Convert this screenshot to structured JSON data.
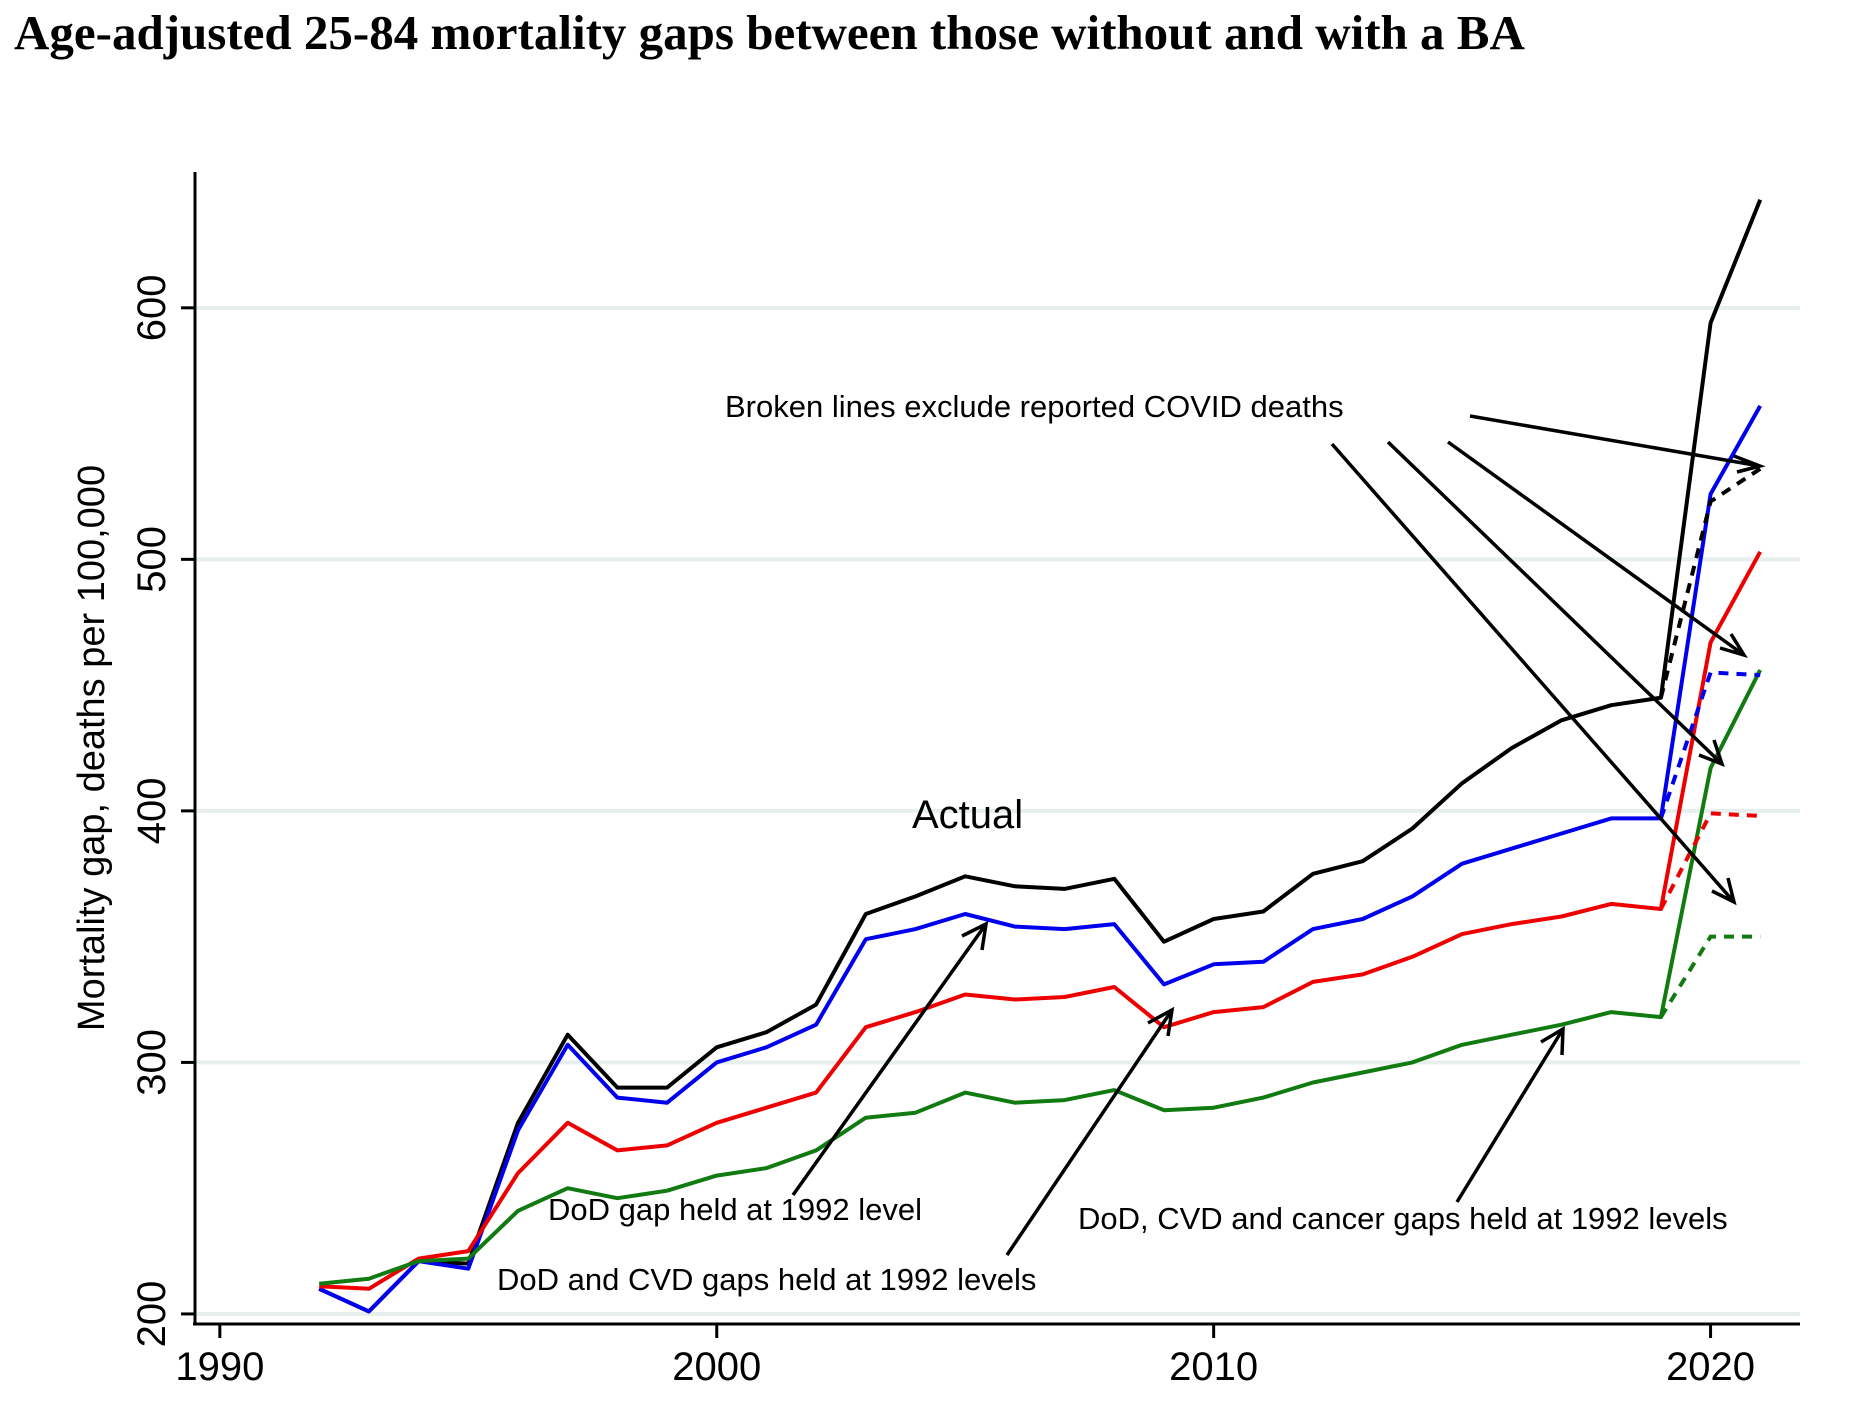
{
  "chart_data": {
    "type": "line",
    "title": "Age-adjusted 25-84 mortality gaps between those without and with a BA",
    "ylabel": "Mortality gap, deaths per 100,000",
    "xlabel": "",
    "xlim": [
      1989.5,
      2021.8
    ],
    "ylim": [
      196,
      654
    ],
    "x_ticks": [
      1990,
      2000,
      2010,
      2020
    ],
    "y_ticks": [
      200,
      300,
      400,
      500,
      600
    ],
    "grid": true,
    "legend": "none",
    "colors": {
      "black": "#000000",
      "blue": "#0000ee",
      "red": "#ee0000",
      "green": "#117a11",
      "grid": "#e6eeee"
    },
    "x": [
      1992,
      1993,
      1994,
      1995,
      1996,
      1997,
      1998,
      1999,
      2000,
      2001,
      2002,
      2003,
      2004,
      2005,
      2006,
      2007,
      2008,
      2009,
      2010,
      2011,
      2012,
      2013,
      2014,
      2015,
      2016,
      2017,
      2018,
      2019,
      2020,
      2021
    ],
    "series": [
      {
        "name": "Actual",
        "color": "#000000",
        "values": [
          210,
          201,
          221,
          220,
          276,
          311,
          290,
          290,
          306,
          312,
          323,
          359,
          366,
          374,
          370,
          369,
          373,
          348,
          357,
          360,
          375,
          380,
          393,
          411,
          425,
          436,
          442,
          445,
          594,
          643
        ]
      },
      {
        "name": "DoD gap held at 1992 level",
        "color": "#0000ee",
        "values": [
          210,
          201,
          221,
          218,
          273,
          307,
          286,
          284,
          300,
          306,
          315,
          349,
          353,
          359,
          354,
          353,
          355,
          331,
          339,
          340,
          353,
          357,
          366,
          379,
          385,
          391,
          397,
          397,
          526,
          561
        ]
      },
      {
        "name": "DoD and CVD gaps held at 1992 levels",
        "color": "#ee0000",
        "values": [
          211,
          210,
          222,
          225,
          256,
          276,
          265,
          267,
          276,
          282,
          288,
          314,
          320,
          327,
          325,
          326,
          330,
          314,
          320,
          322,
          332,
          335,
          342,
          351,
          355,
          358,
          363,
          361,
          467,
          503
        ]
      },
      {
        "name": "DoD, CVD and cancer gaps held at 1992 levels",
        "color": "#117a11",
        "values": [
          212,
          214,
          221,
          222,
          241,
          250,
          246,
          249,
          255,
          258,
          265,
          278,
          280,
          288,
          284,
          285,
          289,
          281,
          282,
          286,
          292,
          296,
          300,
          307,
          311,
          315,
          320,
          318,
          417,
          456
        ]
      }
    ],
    "excluding_covid": {
      "x": [
        2019,
        2020,
        2021
      ],
      "series": [
        {
          "color": "#000000",
          "values": [
            445,
            523,
            536
          ]
        },
        {
          "color": "#0000ee",
          "values": [
            397,
            455,
            454
          ]
        },
        {
          "color": "#ee0000",
          "values": [
            361,
            399,
            398
          ]
        },
        {
          "color": "#117a11",
          "values": [
            318,
            350,
            350
          ]
        }
      ]
    },
    "annotations": {
      "broken": "Broken lines exclude reported COVID deaths",
      "actual": "Actual",
      "dod": "DoD gap held at 1992 level",
      "dod_cvd": "DoD and CVD gaps held at 1992 levels",
      "dod_cvd_cancer": "DoD, CVD and cancer gaps held at 1992 levels"
    }
  }
}
